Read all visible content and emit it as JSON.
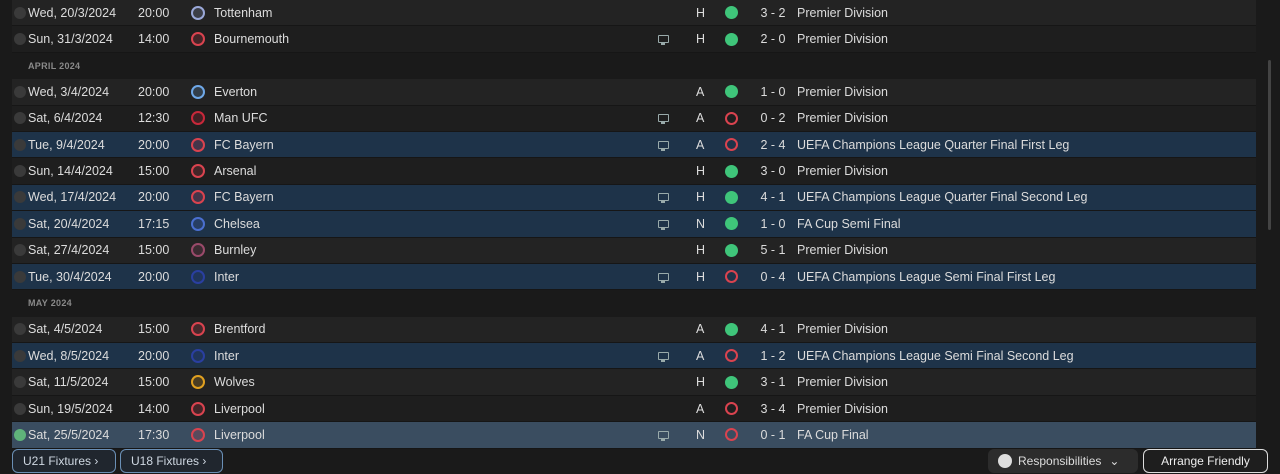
{
  "rows": [
    {
      "date": "Wed, 20/3/2024",
      "time": "20:00",
      "team": "Tottenham",
      "badge": "#9aa8d8",
      "tv": false,
      "venue": "H",
      "result": "win",
      "score": "3 - 2",
      "comp": "Premier Division",
      "style": "alt"
    },
    {
      "date": "Sun, 31/3/2024",
      "time": "14:00",
      "team": "Bournemouth",
      "badge": "#d9434f",
      "tv": true,
      "venue": "H",
      "result": "win",
      "score": "2 - 0",
      "comp": "Premier Division",
      "style": ""
    },
    {
      "section": "APRIL 2024"
    },
    {
      "date": "Wed, 3/4/2024",
      "time": "20:00",
      "team": "Everton",
      "badge": "#6fa8e8",
      "tv": false,
      "venue": "A",
      "result": "win",
      "score": "1 - 0",
      "comp": "Premier Division",
      "style": "alt"
    },
    {
      "date": "Sat, 6/4/2024",
      "time": "12:30",
      "team": "Man UFC",
      "badge": "#c8283a",
      "tv": true,
      "venue": "A",
      "result": "loss",
      "score": "0 - 2",
      "comp": "Premier Division",
      "style": ""
    },
    {
      "date": "Tue, 9/4/2024",
      "time": "20:00",
      "team": "FC Bayern",
      "badge": "#d9434f",
      "tv": true,
      "venue": "A",
      "result": "loss",
      "score": "2 - 4",
      "comp": "UEFA Champions League Quarter Final First Leg",
      "style": "hl"
    },
    {
      "date": "Sun, 14/4/2024",
      "time": "15:00",
      "team": "Arsenal",
      "badge": "#d9434f",
      "tv": false,
      "venue": "H",
      "result": "win",
      "score": "3 - 0",
      "comp": "Premier Division",
      "style": ""
    },
    {
      "date": "Wed, 17/4/2024",
      "time": "20:00",
      "team": "FC Bayern",
      "badge": "#d9434f",
      "tv": true,
      "venue": "H",
      "result": "win",
      "score": "4 - 1",
      "comp": "UEFA Champions League Quarter Final Second Leg",
      "style": "hl"
    },
    {
      "date": "Sat, 20/4/2024",
      "time": "17:15",
      "team": "Chelsea",
      "badge": "#4a6fd0",
      "tv": true,
      "venue": "N",
      "result": "win",
      "score": "1 - 0",
      "comp": "FA Cup Semi Final",
      "style": "hl"
    },
    {
      "date": "Sat, 27/4/2024",
      "time": "15:00",
      "team": "Burnley",
      "badge": "#9a4a6a",
      "tv": false,
      "venue": "H",
      "result": "win",
      "score": "5 - 1",
      "comp": "Premier Division",
      "style": "alt"
    },
    {
      "date": "Tue, 30/4/2024",
      "time": "20:00",
      "team": "Inter",
      "badge": "#2a3fa0",
      "tv": true,
      "venue": "H",
      "result": "loss",
      "score": "0 - 4",
      "comp": "UEFA Champions League Semi Final First Leg",
      "style": "hl"
    },
    {
      "section": "MAY 2024"
    },
    {
      "date": "Sat, 4/5/2024",
      "time": "15:00",
      "team": "Brentford",
      "badge": "#d9434f",
      "tv": false,
      "venue": "A",
      "result": "win",
      "score": "4 - 1",
      "comp": "Premier Division",
      "style": "alt"
    },
    {
      "date": "Wed, 8/5/2024",
      "time": "20:00",
      "team": "Inter",
      "badge": "#2a3fa0",
      "tv": true,
      "venue": "A",
      "result": "loss",
      "score": "1 - 2",
      "comp": "UEFA Champions League Semi Final Second Leg",
      "style": "hl"
    },
    {
      "date": "Sat, 11/5/2024",
      "time": "15:00",
      "team": "Wolves",
      "badge": "#e0a020",
      "tv": false,
      "venue": "H",
      "result": "win",
      "score": "3 - 1",
      "comp": "Premier Division",
      "style": "alt"
    },
    {
      "date": "Sun, 19/5/2024",
      "time": "14:00",
      "team": "Liverpool",
      "badge": "#d9434f",
      "tv": false,
      "venue": "A",
      "result": "loss",
      "score": "3 - 4",
      "comp": "Premier Division",
      "style": ""
    },
    {
      "date": "Sat, 25/5/2024",
      "time": "17:30",
      "team": "Liverpool",
      "badge": "#d9434f",
      "tv": true,
      "venue": "N",
      "result": "loss",
      "score": "0 - 1",
      "comp": "FA Cup Final",
      "style": "sel",
      "done": true
    }
  ],
  "footer": {
    "u21": "U21 Fixtures ›",
    "u18": "U18 Fixtures ›",
    "responsibilities": "Responsibilities",
    "arrange": "Arrange Friendly"
  },
  "colors": {
    "win": "#3fc57a",
    "loss": "#d9434f",
    "highlight": "#1e3349"
  }
}
